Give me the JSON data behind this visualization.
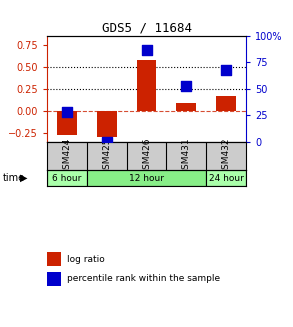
{
  "title": "GDS5 / 11684",
  "categories": [
    "GSM424",
    "GSM425",
    "GSM426",
    "GSM431",
    "GSM432"
  ],
  "log_ratio": [
    -0.27,
    -0.3,
    0.58,
    0.09,
    0.17
  ],
  "percentile_rank_pct": [
    28,
    -2,
    87,
    53,
    68
  ],
  "ylim_left": [
    -0.35,
    0.85
  ],
  "ylim_right": [
    0,
    100
  ],
  "yticks_left": [
    -0.25,
    0,
    0.25,
    0.5,
    0.75
  ],
  "yticks_right": [
    0,
    25,
    50,
    75,
    100
  ],
  "hlines": [
    0.25,
    0.5
  ],
  "bar_color": "#cc2200",
  "scatter_color": "#0000cc",
  "time_groups": [
    {
      "label": "6 hour",
      "start": 0,
      "end": 0,
      "color": "#aaffaa"
    },
    {
      "label": "12 hour",
      "start": 1,
      "end": 3,
      "color": "#88ee88"
    },
    {
      "label": "24 hour",
      "start": 4,
      "end": 4,
      "color": "#aaffaa"
    }
  ],
  "bar_width": 0.5,
  "scatter_size": 50,
  "scatter_marker": "s",
  "legend_red_label": "log ratio",
  "legend_blue_label": "percentile rank within the sample",
  "background_color": "#ffffff",
  "left_axis_color": "#cc2200",
  "right_axis_color": "#0000cc",
  "sample_bg": "#cccccc",
  "title_fontsize": 9
}
